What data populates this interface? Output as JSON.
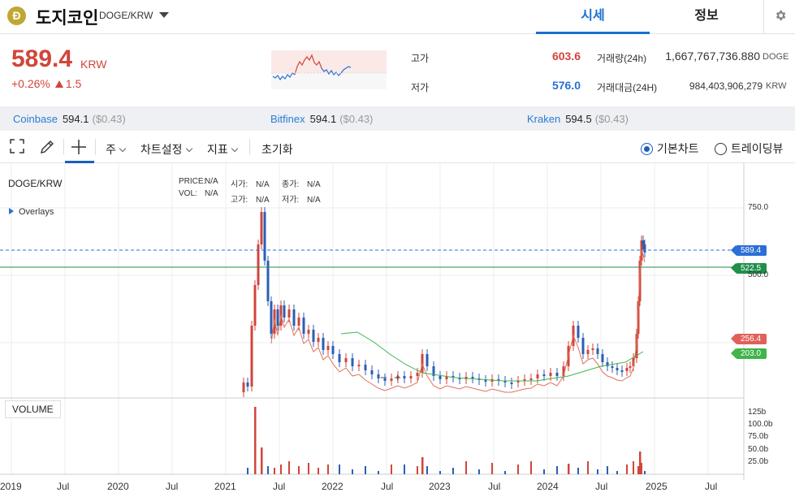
{
  "header": {
    "logo_letter": "Ð",
    "coin_name": "도지코인",
    "pair": "DOGE/KRW",
    "tabs": [
      {
        "label": "시세"
      },
      {
        "label": "정보"
      }
    ]
  },
  "summary": {
    "price": "589.4",
    "unit": "KRW",
    "change_pct": "+0.26%",
    "change_abs": "1.5",
    "high_label": "고가",
    "high": "603.6",
    "low_label": "저가",
    "low": "576.0",
    "volume_label": "거래량(24h)",
    "volume": "1,667,767,736.880",
    "volume_unit": "DOGE",
    "value_label": "거래대금(24H)",
    "value": "984,403,906,279",
    "value_unit": "KRW"
  },
  "exchanges": [
    {
      "name": "Coinbase",
      "price": "594.1",
      "diff": "($0.43)"
    },
    {
      "name": "Bitfinex",
      "price": "594.1",
      "diff": "($0.43)"
    },
    {
      "name": "Kraken",
      "price": "594.5",
      "diff": "($0.43)"
    }
  ],
  "toolbar": {
    "period": "주",
    "chart_settings": "차트설정",
    "indicators": "지표",
    "reset": "초기화",
    "basic_chart": "기본차트",
    "trading_view": "트레이딩뷰"
  },
  "chart": {
    "title": "DOGE/KRW",
    "overlays": "Overlays",
    "volume_label": "VOLUME",
    "legend": {
      "price": "PRICE:",
      "price_v": "N/A",
      "vol": "VOL:",
      "vol_v": "N/A",
      "open": "시가:",
      "open_v": "N/A",
      "high": "고가:",
      "high_v": "N/A",
      "close": "종가:",
      "close_v": "N/A",
      "low": "저가:",
      "low_v": "N/A"
    },
    "tags": {
      "current": "589.4",
      "line": "522.5",
      "ma_short": "256.4",
      "ma_long": "203.0"
    },
    "y_ticks": [
      "750.0",
      "500.0"
    ],
    "vol_ticks": [
      "125b",
      "100.0b",
      "75.0b",
      "50.0b",
      "25.0b"
    ],
    "x_ticks": [
      "2019",
      "Jul",
      "2020",
      "Jul",
      "2021",
      "Jul",
      "2022",
      "Jul",
      "2023",
      "Jul",
      "2024",
      "Jul",
      "2025",
      "Jul"
    ],
    "colors": {
      "up": "#d1453b",
      "down": "#2b5fb4",
      "ma_short": "#e0705a",
      "ma_long": "#3fb54a",
      "line": "#1f8f4a",
      "current": "#2b6fd6"
    }
  }
}
